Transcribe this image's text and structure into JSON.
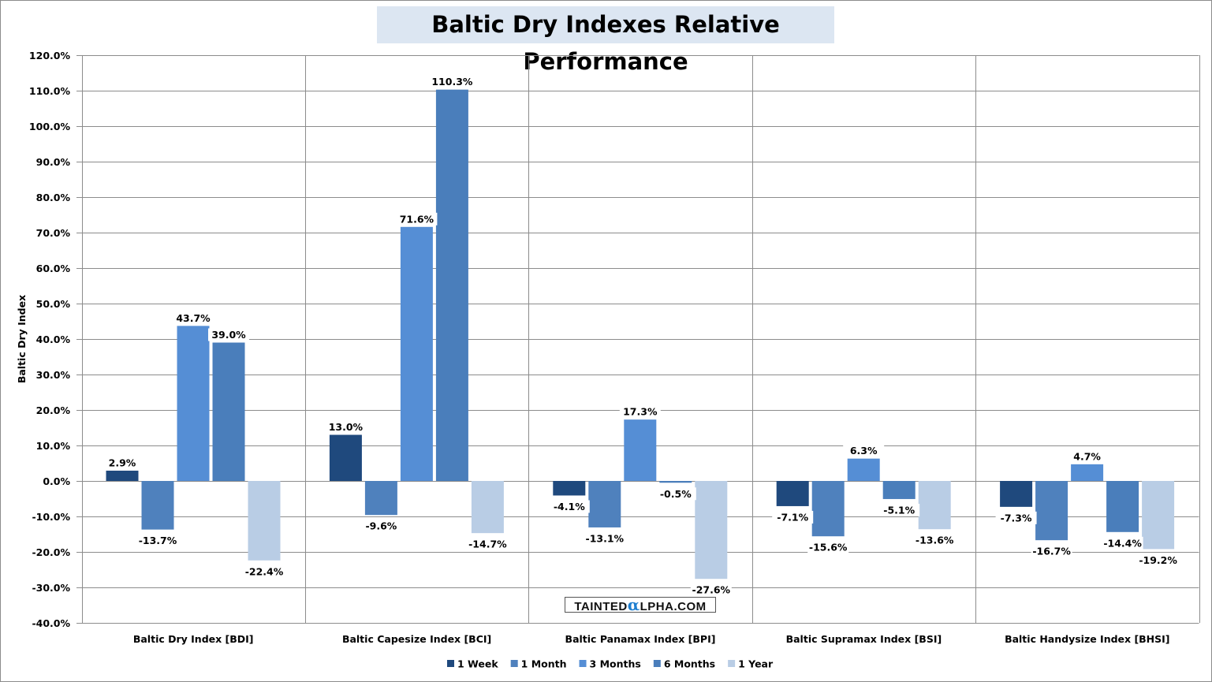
{
  "chart_data": {
    "type": "bar",
    "title": "Baltic Dry Indexes Relative Performance",
    "xlabel": "",
    "ylabel": "Baltic Dry  Index",
    "ylim": [
      -40,
      120
    ],
    "ytick_step": 10,
    "yticks": [
      "120.0%",
      "110.0%",
      "100.0%",
      "90.0%",
      "80.0%",
      "70.0%",
      "60.0%",
      "50.0%",
      "40.0%",
      "30.0%",
      "20.0%",
      "10.0%",
      "0.0%",
      "-10.0%",
      "-20.0%",
      "-30.0%",
      "-40.0%"
    ],
    "grid": true,
    "legend_position": "bottom",
    "categories": [
      "Baltic Dry Index [BDI]",
      "Baltic Capesize Index [BCI]",
      "Baltic Panamax Index [BPI]",
      "Baltic Supramax Index [BSI]",
      "Baltic Handysize Index [BHSI]"
    ],
    "series": [
      {
        "name": "1 Week",
        "color": "#1f497d",
        "values": [
          2.9,
          13.0,
          -4.1,
          -7.1,
          -7.3
        ]
      },
      {
        "name": "1 Month",
        "color": "#4f81bd",
        "values": [
          -13.7,
          -9.6,
          -13.1,
          -15.6,
          -16.7
        ]
      },
      {
        "name": "3 Months",
        "color": "#558ed5",
        "values": [
          43.7,
          71.6,
          17.3,
          6.3,
          4.7
        ]
      },
      {
        "name": "6 Months",
        "color": "#4a7ebb",
        "values": [
          39.0,
          110.3,
          -0.5,
          -5.1,
          -14.4
        ]
      },
      {
        "name": "1 Year",
        "color": "#b9cde5",
        "values": [
          -22.4,
          -14.7,
          -27.6,
          -13.6,
          -19.2
        ]
      }
    ]
  },
  "watermark": {
    "pre": "TAINTED",
    "alpha": "α",
    "post": "LPHA.COM"
  }
}
